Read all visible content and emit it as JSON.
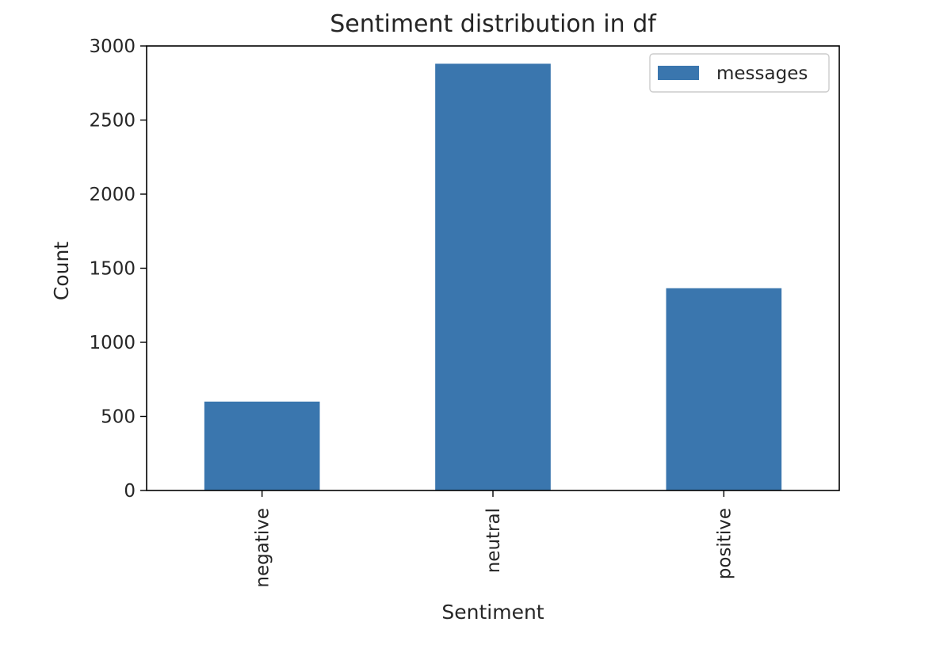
{
  "chart_data": {
    "type": "bar",
    "title": "Sentiment distribution in df",
    "xlabel": "Sentiment",
    "ylabel": "Count",
    "categories": [
      "negative",
      "neutral",
      "positive"
    ],
    "series": [
      {
        "name": "messages",
        "values": [
          600,
          2880,
          1365
        ],
        "color": "#3a76ae"
      }
    ],
    "ylim": [
      0,
      3000
    ],
    "yticks": [
      0,
      500,
      1000,
      1500,
      2000,
      2500,
      3000
    ],
    "grid": false,
    "legend_position": "top-right"
  }
}
